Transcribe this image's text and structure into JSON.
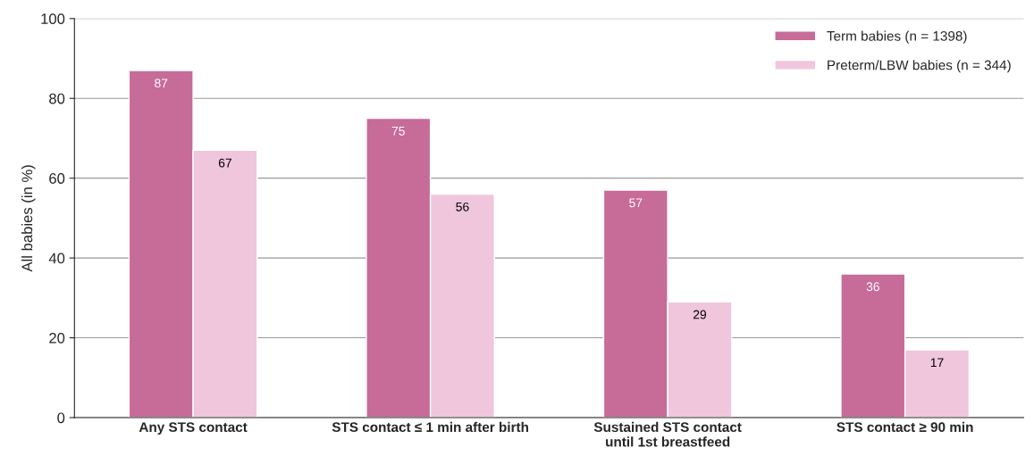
{
  "chart_data": {
    "type": "bar",
    "ylabel": "All babies (in %)",
    "categories": [
      "Any STS contact",
      "STS contact ≤ 1 min after birth",
      "Sustained STS contact\nuntil 1st breastfeed",
      "STS contact ≥ 90 min"
    ],
    "series": [
      {
        "name": "Term babies (n = 1398)",
        "color": "#c76b99",
        "values": [
          87,
          75,
          57,
          36
        ]
      },
      {
        "name": "Preterm/LBW babies (n = 344)",
        "color": "#f0c6dd",
        "values": [
          67,
          56,
          29,
          17
        ]
      }
    ],
    "ylim": [
      0,
      100
    ],
    "yticks": [
      0,
      20,
      40,
      60,
      80,
      100
    ],
    "grid": "y",
    "legend": "top right",
    "data_labels": true
  }
}
